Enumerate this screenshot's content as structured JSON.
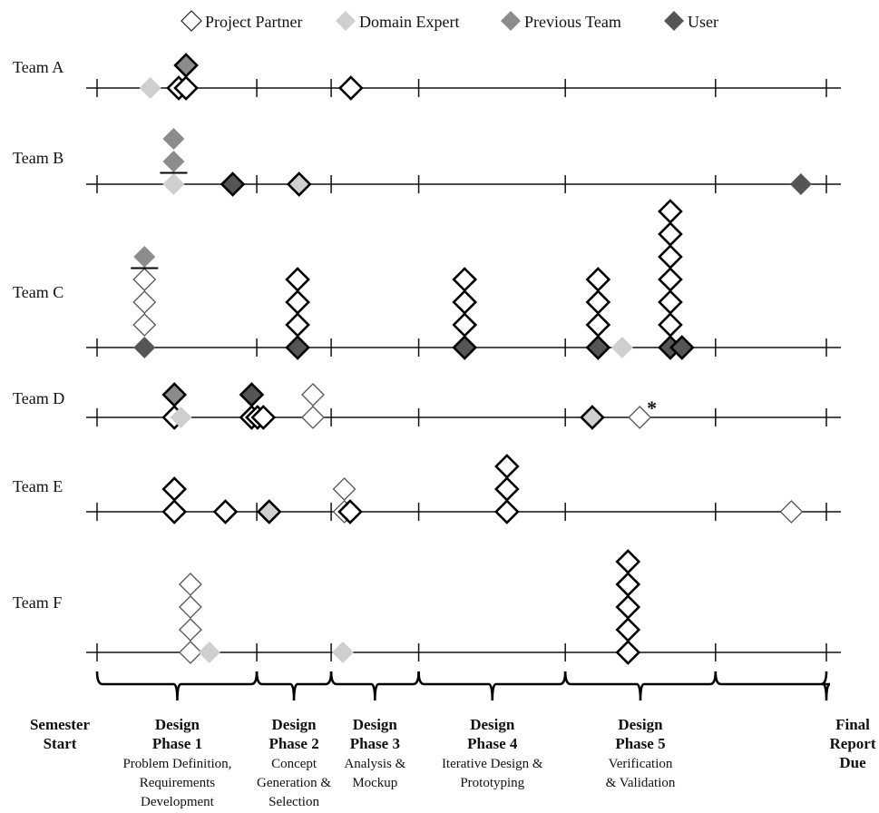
{
  "chart_data": {
    "type": "scatter",
    "legend_position": "top-center",
    "legend": [
      {
        "key": "pp",
        "label": "Project Partner",
        "fill": "#ffffff"
      },
      {
        "key": "de",
        "label": "Domain Expert",
        "fill": "#cfcfcf"
      },
      {
        "key": "pt",
        "label": "Previous Team",
        "fill": "#8c8c8c"
      },
      {
        "key": "us",
        "label": "User",
        "fill": "#555555"
      }
    ],
    "x_range": [
      0,
      100
    ],
    "phase_boundaries": [
      0,
      21.9,
      32.1,
      44.1,
      64.2,
      84.8,
      100
    ],
    "timeline_labels": [
      {
        "pos": 0,
        "lines": [
          "Semester",
          "Start"
        ],
        "bold": 2
      },
      {
        "pos": 11.0,
        "lines": [
          "Design",
          "Phase 1",
          "Problem Definition,",
          "Requirements",
          "Development"
        ],
        "bold": 2
      },
      {
        "pos": 27.0,
        "lines": [
          "Design",
          "Phase 2",
          "Concept",
          "Generation &",
          "Selection"
        ],
        "bold": 2
      },
      {
        "pos": 38.1,
        "lines": [
          "Design",
          "Phase 3",
          "Analysis &",
          "Mockup"
        ],
        "bold": 2
      },
      {
        "pos": 54.2,
        "lines": [
          "Design",
          "Phase 4",
          "Iterative Design &",
          "Prototyping"
        ],
        "bold": 2
      },
      {
        "pos": 74.5,
        "lines": [
          "Design",
          "Phase 5",
          "Verification",
          "& Validation"
        ],
        "bold": 2
      },
      {
        "pos": 100,
        "lines": [
          "Final",
          "Report",
          "Due"
        ],
        "bold": 3
      }
    ],
    "teams": [
      {
        "name": "Team A",
        "points": [
          {
            "x": 7.3,
            "stack": 0,
            "type": "de",
            "style": "light"
          },
          {
            "x": 11.2,
            "stack": 0,
            "type": "pp",
            "style": "bold"
          },
          {
            "x": 12.2,
            "stack": 0,
            "type": "pp",
            "style": "bold"
          },
          {
            "x": 12.2,
            "stack": 1,
            "type": "pt",
            "style": "bold"
          },
          {
            "x": 34.8,
            "stack": 0,
            "type": "pp",
            "style": "bold"
          }
        ],
        "dividers": []
      },
      {
        "name": "Team B",
        "points": [
          {
            "x": 10.5,
            "stack": 0,
            "type": "de",
            "style": "light"
          },
          {
            "x": 10.5,
            "stack": 1,
            "type": "pt",
            "style": "light"
          },
          {
            "x": 10.5,
            "stack": 2,
            "type": "pt",
            "style": "light"
          },
          {
            "x": 18.6,
            "stack": 0,
            "type": "us",
            "style": "bold"
          },
          {
            "x": 27.7,
            "stack": 0,
            "type": "de",
            "style": "bold"
          },
          {
            "x": 96.5,
            "stack": 0,
            "type": "us",
            "style": "light"
          }
        ],
        "dividers": [
          {
            "x": 10.5,
            "stack": 0.5
          }
        ]
      },
      {
        "name": "Team C",
        "points": [
          {
            "x": 6.5,
            "stack": 0,
            "type": "us",
            "style": "light"
          },
          {
            "x": 6.5,
            "stack": 1,
            "type": "pp",
            "style": "light"
          },
          {
            "x": 6.5,
            "stack": 2,
            "type": "pp",
            "style": "light"
          },
          {
            "x": 6.5,
            "stack": 3,
            "type": "pp",
            "style": "light"
          },
          {
            "x": 6.5,
            "stack": 4,
            "type": "pt",
            "style": "light"
          },
          {
            "x": 27.5,
            "stack": 0,
            "type": "us",
            "style": "bold"
          },
          {
            "x": 27.5,
            "stack": 1,
            "type": "pp",
            "style": "bold"
          },
          {
            "x": 27.5,
            "stack": 2,
            "type": "pp",
            "style": "bold"
          },
          {
            "x": 27.5,
            "stack": 3,
            "type": "pp",
            "style": "bold"
          },
          {
            "x": 50.4,
            "stack": 0,
            "type": "us",
            "style": "bold"
          },
          {
            "x": 50.4,
            "stack": 1,
            "type": "pp",
            "style": "bold"
          },
          {
            "x": 50.4,
            "stack": 2,
            "type": "pp",
            "style": "bold"
          },
          {
            "x": 50.4,
            "stack": 3,
            "type": "pp",
            "style": "bold"
          },
          {
            "x": 68.7,
            "stack": 0,
            "type": "us",
            "style": "bold"
          },
          {
            "x": 68.7,
            "stack": 1,
            "type": "pp",
            "style": "bold"
          },
          {
            "x": 68.7,
            "stack": 2,
            "type": "pp",
            "style": "bold"
          },
          {
            "x": 68.7,
            "stack": 3,
            "type": "pp",
            "style": "bold"
          },
          {
            "x": 72.0,
            "stack": 0,
            "type": "de",
            "style": "light"
          },
          {
            "x": 78.6,
            "stack": 0,
            "type": "us",
            "style": "bold"
          },
          {
            "x": 78.6,
            "stack": 1,
            "type": "pp",
            "style": "bold"
          },
          {
            "x": 78.6,
            "stack": 2,
            "type": "pp",
            "style": "bold"
          },
          {
            "x": 78.6,
            "stack": 3,
            "type": "pp",
            "style": "bold"
          },
          {
            "x": 78.6,
            "stack": 4,
            "type": "pp",
            "style": "bold"
          },
          {
            "x": 78.6,
            "stack": 5,
            "type": "pp",
            "style": "bold"
          },
          {
            "x": 78.6,
            "stack": 6,
            "type": "pp",
            "style": "bold"
          },
          {
            "x": 80.2,
            "stack": 0,
            "type": "us",
            "style": "bold"
          }
        ],
        "dividers": [
          {
            "x": 6.5,
            "stack": 3.5
          }
        ]
      },
      {
        "name": "Team D",
        "points": [
          {
            "x": 10.6,
            "stack": 0,
            "type": "pp",
            "style": "bold"
          },
          {
            "x": 11.5,
            "stack": 0,
            "type": "de",
            "style": "light"
          },
          {
            "x": 10.6,
            "stack": 1,
            "type": "pt",
            "style": "bold"
          },
          {
            "x": 21.2,
            "stack": 0,
            "type": "pp",
            "style": "bold"
          },
          {
            "x": 22.0,
            "stack": 0,
            "type": "pp",
            "style": "bold"
          },
          {
            "x": 22.8,
            "stack": 0,
            "type": "pp",
            "style": "bold"
          },
          {
            "x": 21.2,
            "stack": 1,
            "type": "us",
            "style": "bold"
          },
          {
            "x": 29.6,
            "stack": 0,
            "type": "pp",
            "style": "light"
          },
          {
            "x": 29.6,
            "stack": 1,
            "type": "pp",
            "style": "light"
          },
          {
            "x": 67.9,
            "stack": 0,
            "type": "de",
            "style": "bold"
          },
          {
            "x": 74.4,
            "stack": 0,
            "type": "pp",
            "style": "light"
          }
        ],
        "dividers": [],
        "annotations": [
          {
            "x": 74.4,
            "text": "*"
          }
        ]
      },
      {
        "name": "Team E",
        "points": [
          {
            "x": 10.6,
            "stack": 0,
            "type": "pp",
            "style": "bold"
          },
          {
            "x": 10.6,
            "stack": 1,
            "type": "pp",
            "style": "bold"
          },
          {
            "x": 17.6,
            "stack": 0,
            "type": "pp",
            "style": "bold"
          },
          {
            "x": 23.6,
            "stack": 0,
            "type": "de",
            "style": "bold"
          },
          {
            "x": 33.9,
            "stack": 0,
            "type": "pp",
            "style": "light"
          },
          {
            "x": 33.9,
            "stack": 1,
            "type": "pp",
            "style": "light"
          },
          {
            "x": 34.7,
            "stack": 0,
            "type": "pp",
            "style": "bold"
          },
          {
            "x": 56.2,
            "stack": 0,
            "type": "pp",
            "style": "bold"
          },
          {
            "x": 56.2,
            "stack": 1,
            "type": "pp",
            "style": "bold"
          },
          {
            "x": 56.2,
            "stack": 2,
            "type": "pp",
            "style": "bold"
          },
          {
            "x": 95.2,
            "stack": 0,
            "type": "pp",
            "style": "light"
          }
        ],
        "dividers": []
      },
      {
        "name": "Team F",
        "points": [
          {
            "x": 12.8,
            "stack": 0,
            "type": "pp",
            "style": "light"
          },
          {
            "x": 12.8,
            "stack": 1,
            "type": "pp",
            "style": "light"
          },
          {
            "x": 12.8,
            "stack": 2,
            "type": "pp",
            "style": "light"
          },
          {
            "x": 12.8,
            "stack": 3,
            "type": "pp",
            "style": "light"
          },
          {
            "x": 15.4,
            "stack": 0,
            "type": "de",
            "style": "light"
          },
          {
            "x": 33.7,
            "stack": 0,
            "type": "de",
            "style": "light"
          },
          {
            "x": 72.8,
            "stack": 0,
            "type": "pp",
            "style": "bold"
          },
          {
            "x": 72.8,
            "stack": 1,
            "type": "pp",
            "style": "bold"
          },
          {
            "x": 72.8,
            "stack": 2,
            "type": "pp",
            "style": "bold"
          },
          {
            "x": 72.8,
            "stack": 3,
            "type": "pp",
            "style": "bold"
          },
          {
            "x": 72.8,
            "stack": 4,
            "type": "pp",
            "style": "bold"
          }
        ],
        "dividers": []
      }
    ]
  }
}
